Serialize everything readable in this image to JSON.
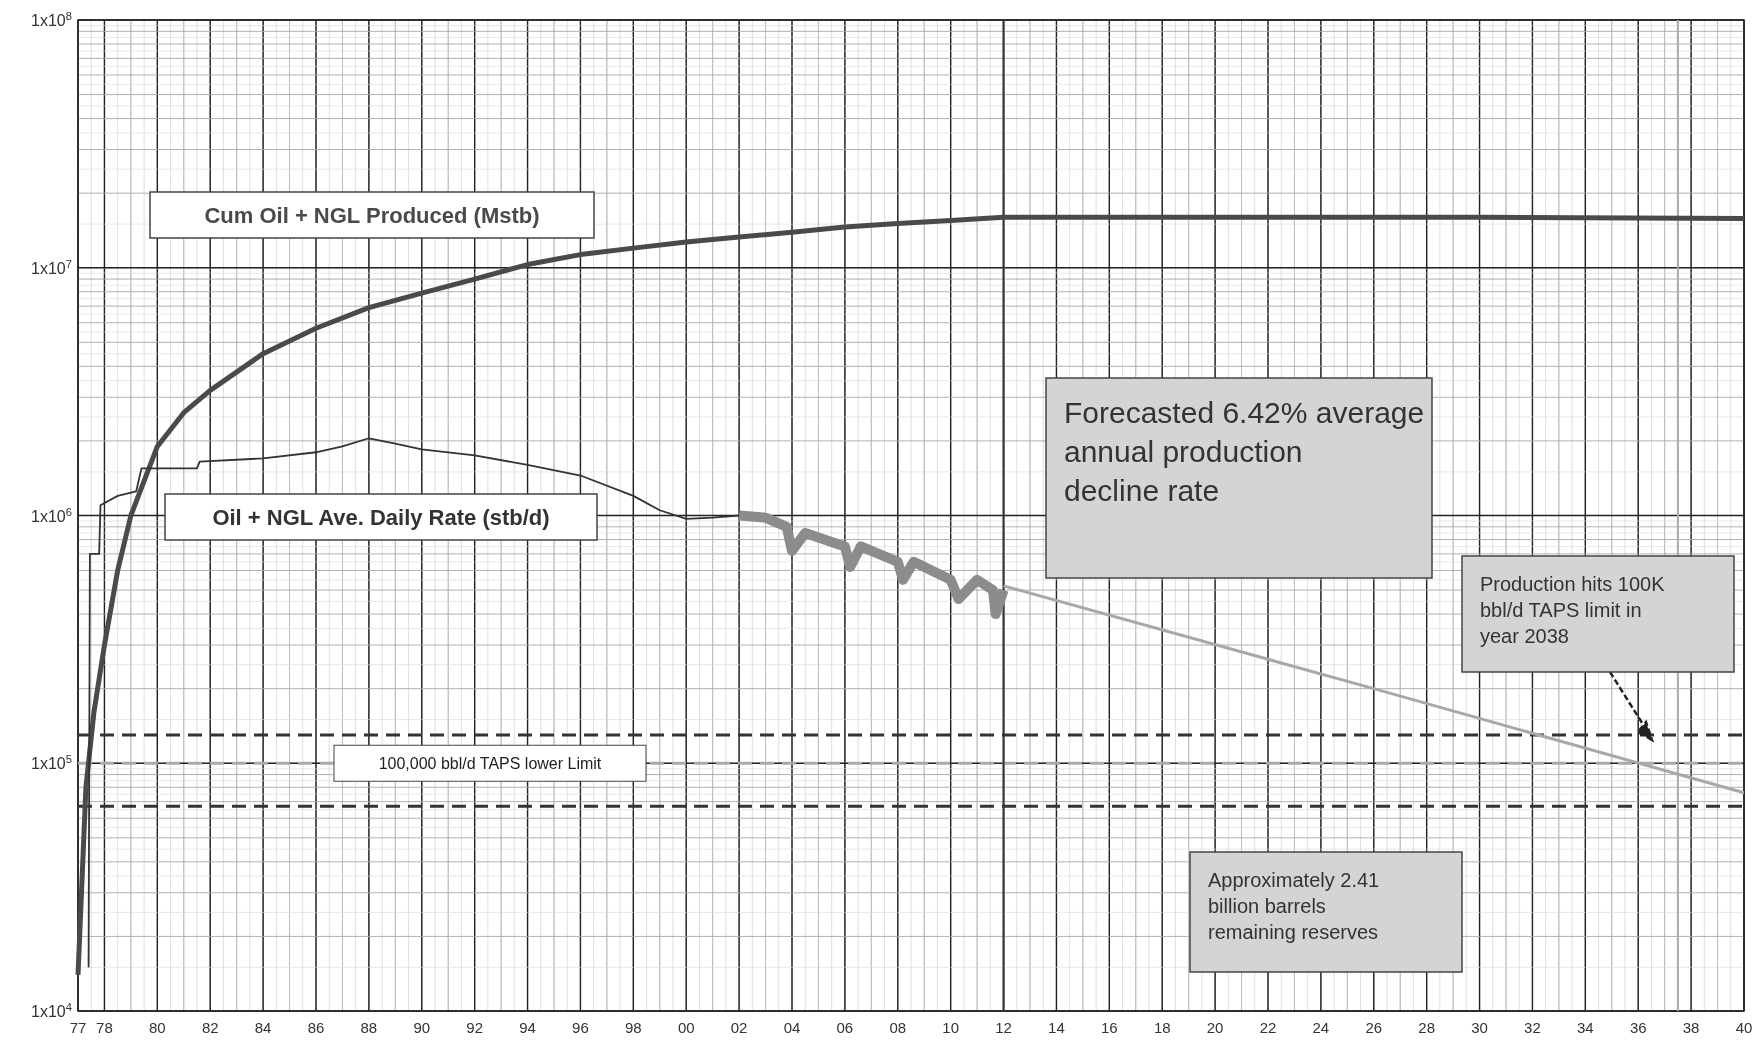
{
  "chart_data": {
    "type": "line",
    "log": "y",
    "grid": true,
    "legend": false,
    "marker": "none",
    "xlim": [
      1977,
      2040
    ],
    "xticks": [
      {
        "value": 1977,
        "label": "77"
      },
      {
        "value": 1978,
        "label": "78"
      },
      {
        "value": 1980,
        "label": "80"
      },
      {
        "value": 1982,
        "label": "82"
      },
      {
        "value": 1984,
        "label": "84"
      },
      {
        "value": 1986,
        "label": "86"
      },
      {
        "value": 1988,
        "label": "88"
      },
      {
        "value": 1990,
        "label": "90"
      },
      {
        "value": 1992,
        "label": "92"
      },
      {
        "value": 1994,
        "label": "94"
      },
      {
        "value": 1996,
        "label": "96"
      },
      {
        "value": 1998,
        "label": "98"
      },
      {
        "value": 2000,
        "label": "00"
      },
      {
        "value": 2002,
        "label": "02"
      },
      {
        "value": 2004,
        "label": "04"
      },
      {
        "value": 2006,
        "label": "06"
      },
      {
        "value": 2008,
        "label": "08"
      },
      {
        "value": 2010,
        "label": "10"
      },
      {
        "value": 2012,
        "label": "12"
      },
      {
        "value": 2014,
        "label": "14"
      },
      {
        "value": 2016,
        "label": "16"
      },
      {
        "value": 2018,
        "label": "18"
      },
      {
        "value": 2020,
        "label": "20"
      },
      {
        "value": 2022,
        "label": "22"
      },
      {
        "value": 2024,
        "label": "24"
      },
      {
        "value": 2026,
        "label": "26"
      },
      {
        "value": 2028,
        "label": "28"
      },
      {
        "value": 2030,
        "label": "30"
      },
      {
        "value": 2032,
        "label": "32"
      },
      {
        "value": 2034,
        "label": "34"
      },
      {
        "value": 2036,
        "label": "36"
      },
      {
        "value": 2038,
        "label": "38"
      },
      {
        "value": 2040,
        "label": "40"
      }
    ],
    "ylim": [
      10000,
      100000000
    ],
    "yticks": [
      {
        "value": 10000,
        "label": "1x10$^{4}$"
      },
      {
        "value": 100000,
        "label": "1x10$^{5}$"
      },
      {
        "value": 1000000,
        "label": "1x10$^{6}$"
      },
      {
        "value": 10000000,
        "label": "1x10$^{7}$"
      },
      {
        "value": 100000000,
        "label": "1x10$^{8}$"
      }
    ],
    "series": [
      {
        "name": "Cum Oil +  NGL Produced (Mstb)",
        "color": "#4a4a4a",
        "x": [
          1977,
          1977.3,
          1977.6,
          1978,
          1978.5,
          1979,
          1980,
          1981,
          1982,
          1984,
          1986,
          1988,
          1990,
          1992,
          1994,
          1996,
          1998,
          2000,
          2002,
          2004,
          2006,
          2008,
          2010,
          2012,
          2020,
          2030,
          2040
        ],
        "values": [
          14000,
          80000,
          160000,
          300000,
          600000,
          1000000,
          1900000,
          2600000,
          3200000,
          4500000,
          5700000,
          6900000,
          7900000,
          9000000,
          10300000,
          11300000,
          12000000,
          12700000,
          13300000,
          13900000,
          14600000,
          15100000,
          15500000,
          16000000,
          16000000,
          16000000,
          15800000
        ]
      },
      {
        "name": "Oil + NGL Ave. Daily Rate (stb/d)",
        "color": "#333333",
        "x": [
          1977.4,
          1977.45,
          1977.8,
          1977.85,
          1978.5,
          1979.2,
          1979.4,
          1981.5,
          1981.6,
          1984,
          1986,
          1987,
          1988,
          1989,
          1990,
          1992,
          1994,
          1996,
          1998,
          1999,
          2000,
          2001,
          2002
        ],
        "values": [
          15000,
          700000,
          700000,
          1100000,
          1200000,
          1250000,
          1550000,
          1550000,
          1650000,
          1700000,
          1800000,
          1900000,
          2050000,
          1950000,
          1850000,
          1750000,
          1600000,
          1450000,
          1200000,
          1050000,
          970000,
          980000,
          1000000
        ]
      },
      {
        "color": "#8c8c8c",
        "x": [
          2002,
          2003,
          2003.8,
          2004,
          2004.5,
          2006,
          2006.2,
          2006.6,
          2008,
          2008.2,
          2008.6,
          2010,
          2010.3,
          2011,
          2011.6,
          2011.7,
          2012
        ],
        "values": [
          1000000,
          980000,
          900000,
          720000,
          850000,
          750000,
          620000,
          750000,
          650000,
          550000,
          650000,
          550000,
          460000,
          550000,
          500000,
          400000,
          500000
        ]
      },
      {
        "color": "#a8a8a8",
        "x": [
          2012,
          2026,
          2040
        ],
        "values": [
          520000,
          200000,
          76000
        ]
      }
    ],
    "ref_lines": [
      {
        "axis": "y",
        "value": 130000,
        "color": "#333333",
        "line_style": "dashed"
      },
      {
        "axis": "y",
        "value": 100000,
        "label": "100,000 bbl/d TAPS lower Limit",
        "color": "#aaaaaa",
        "line_style": "dashed"
      },
      {
        "axis": "y",
        "value": 67000,
        "color": "#333333",
        "line_style": "dashed"
      },
      {
        "axis": "x",
        "value": 2012,
        "color": "#333333",
        "line_style": "solid"
      },
      {
        "axis": "x",
        "value": 2037.5,
        "color": "#aaaaaa",
        "line_style": "solid"
      }
    ],
    "annotations": [
      "Forecasted 6.42% average annual production decline rate",
      "Production  hits 100K bbl/d TAPS limit in year 2038",
      "Approximately 2.41 billion barrels remaining reserves"
    ]
  }
}
